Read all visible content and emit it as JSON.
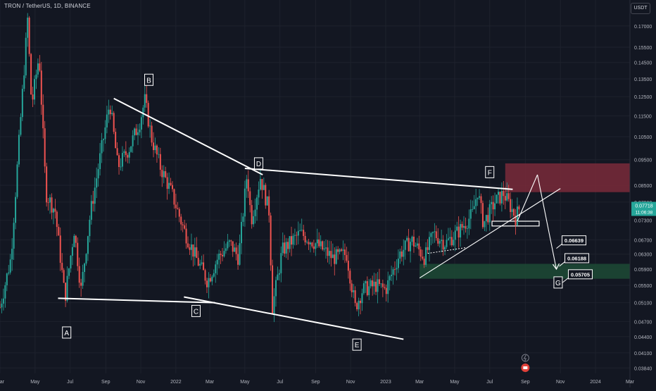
{
  "header": {
    "title": "TRON / TetherUS, 1D, BINANCE"
  },
  "currency_label": "USDT",
  "colors": {
    "background": "#131722",
    "up": "#26a69a",
    "down": "#ef5350",
    "grid": "#1e222d",
    "axis_text": "#b2b5be",
    "sell_zone": "#7a2a3a",
    "buy_zone": "#1d4a35",
    "price_badge": "#26a69a",
    "drawing": "#ffffff"
  },
  "chart_data": {
    "type": "candlestick",
    "title": "TRON / TetherUS, 1D, BINANCE",
    "y_scale": "log",
    "ylim": [
      0.0375,
      0.179
    ],
    "x_range": [
      "2021-03-01",
      "2024-03-01"
    ],
    "y_ticks": [
      "0.17000",
      "0.15500",
      "0.14500",
      "0.13500",
      "0.12500",
      "0.11500",
      "0.10500",
      "0.09500",
      "0.08500",
      "0.07900",
      "0.07300",
      "0.06700",
      "0.06300",
      "0.05900",
      "0.05500",
      "0.05100",
      "0.04700",
      "0.04400",
      "0.04100",
      "0.03840"
    ],
    "y_tick_values": [
      0.17,
      0.155,
      0.145,
      0.135,
      0.125,
      0.115,
      0.105,
      0.095,
      0.085,
      0.079,
      0.073,
      0.067,
      0.063,
      0.059,
      0.055,
      0.051,
      0.047,
      0.044,
      0.041,
      0.0384
    ],
    "x_ticks": [
      {
        "label": "Mar",
        "date": "2021-03-01"
      },
      {
        "label": "May",
        "date": "2021-05-01"
      },
      {
        "label": "Jul",
        "date": "2021-07-01"
      },
      {
        "label": "Sep",
        "date": "2021-09-01"
      },
      {
        "label": "Nov",
        "date": "2021-11-01"
      },
      {
        "label": "2022",
        "date": "2022-01-01"
      },
      {
        "label": "Mar",
        "date": "2022-03-01"
      },
      {
        "label": "May",
        "date": "2022-05-01"
      },
      {
        "label": "Jul",
        "date": "2022-07-01"
      },
      {
        "label": "Sep",
        "date": "2022-09-01"
      },
      {
        "label": "Nov",
        "date": "2022-11-01"
      },
      {
        "label": "2023",
        "date": "2023-01-01"
      },
      {
        "label": "Mar",
        "date": "2023-03-01"
      },
      {
        "label": "May",
        "date": "2023-05-01"
      },
      {
        "label": "Jul",
        "date": "2023-07-01"
      },
      {
        "label": "Sep",
        "date": "2023-09-01"
      },
      {
        "label": "Nov",
        "date": "2023-11-01"
      },
      {
        "label": "2024",
        "date": "2024-01-01"
      },
      {
        "label": "Mar",
        "date": "2024-03-01"
      }
    ],
    "price_path": [
      {
        "date": "2021-03-01",
        "price": 0.05
      },
      {
        "date": "2021-03-20",
        "price": 0.062
      },
      {
        "date": "2021-04-05",
        "price": 0.11
      },
      {
        "date": "2021-04-18",
        "price": 0.175
      },
      {
        "date": "2021-04-25",
        "price": 0.12
      },
      {
        "date": "2021-05-08",
        "price": 0.15
      },
      {
        "date": "2021-05-20",
        "price": 0.082
      },
      {
        "date": "2021-06-05",
        "price": 0.076
      },
      {
        "date": "2021-06-22",
        "price": 0.052
      },
      {
        "date": "2021-07-08",
        "price": 0.07
      },
      {
        "date": "2021-07-20",
        "price": 0.054
      },
      {
        "date": "2021-08-05",
        "price": 0.075
      },
      {
        "date": "2021-08-25",
        "price": 0.1
      },
      {
        "date": "2021-09-08",
        "price": 0.122
      },
      {
        "date": "2021-09-22",
        "price": 0.092
      },
      {
        "date": "2021-10-12",
        "price": 0.1
      },
      {
        "date": "2021-10-30",
        "price": 0.112
      },
      {
        "date": "2021-11-08",
        "price": 0.123
      },
      {
        "date": "2021-11-20",
        "price": 0.104
      },
      {
        "date": "2021-12-05",
        "price": 0.092
      },
      {
        "date": "2021-12-25",
        "price": 0.082
      },
      {
        "date": "2022-01-15",
        "price": 0.07
      },
      {
        "date": "2022-02-05",
        "price": 0.062
      },
      {
        "date": "2022-02-25",
        "price": 0.056
      },
      {
        "date": "2022-03-15",
        "price": 0.062
      },
      {
        "date": "2022-04-05",
        "price": 0.066
      },
      {
        "date": "2022-04-20",
        "price": 0.062
      },
      {
        "date": "2022-05-05",
        "price": 0.09
      },
      {
        "date": "2022-05-12",
        "price": 0.073
      },
      {
        "date": "2022-05-28",
        "price": 0.088
      },
      {
        "date": "2022-06-12",
        "price": 0.076
      },
      {
        "date": "2022-06-18",
        "price": 0.05
      },
      {
        "date": "2022-07-05",
        "price": 0.064
      },
      {
        "date": "2022-08-05",
        "price": 0.069
      },
      {
        "date": "2022-09-01",
        "price": 0.066
      },
      {
        "date": "2022-10-01",
        "price": 0.062
      },
      {
        "date": "2022-10-25",
        "price": 0.063
      },
      {
        "date": "2022-11-09",
        "price": 0.05
      },
      {
        "date": "2022-11-22",
        "price": 0.054
      },
      {
        "date": "2022-12-15",
        "price": 0.055
      },
      {
        "date": "2023-01-01",
        "price": 0.054
      },
      {
        "date": "2023-01-25",
        "price": 0.063
      },
      {
        "date": "2023-02-15",
        "price": 0.067
      },
      {
        "date": "2023-03-10",
        "price": 0.062
      },
      {
        "date": "2023-03-25",
        "price": 0.069
      },
      {
        "date": "2023-04-15",
        "price": 0.066
      },
      {
        "date": "2023-05-10",
        "price": 0.07
      },
      {
        "date": "2023-06-01",
        "price": 0.075
      },
      {
        "date": "2023-06-10",
        "price": 0.083
      },
      {
        "date": "2023-06-20",
        "price": 0.072
      },
      {
        "date": "2023-07-10",
        "price": 0.079
      },
      {
        "date": "2023-07-25",
        "price": 0.082
      },
      {
        "date": "2023-08-05",
        "price": 0.078
      },
      {
        "date": "2023-08-15",
        "price": 0.074
      },
      {
        "date": "2023-08-22",
        "price": 0.0772
      }
    ],
    "last_price": {
      "value": "0.07718",
      "countdown": "11:06:38"
    },
    "zones": [
      {
        "name": "sell-zone",
        "x_from": "2023-07-28",
        "x_to": "2024-03-01",
        "y_from": 0.0825,
        "y_to": 0.0935
      },
      {
        "name": "buy-zone",
        "x_from": "2023-03-01",
        "x_to": "2024-03-01",
        "y_from": 0.0566,
        "y_to": 0.0604
      },
      {
        "name": "small-box",
        "x_from": "2023-07-05",
        "x_to": "2023-09-25",
        "y_from": 0.0712,
        "y_to": 0.0727
      }
    ],
    "trendlines": [
      {
        "name": "upper-line-BD",
        "from": {
          "date": "2021-09-15",
          "price": 0.124
        },
        "to": {
          "date": "2022-06-01",
          "price": 0.089
        }
      },
      {
        "name": "upper-line-DF",
        "from": {
          "date": "2022-05-01",
          "price": 0.0915
        },
        "to": {
          "date": "2023-08-10",
          "price": 0.0835
        }
      },
      {
        "name": "lower-line-AC",
        "from": {
          "date": "2021-06-10",
          "price": 0.052
        },
        "to": {
          "date": "2022-03-10",
          "price": 0.051
        }
      },
      {
        "name": "lower-line-CE",
        "from": {
          "date": "2022-01-15",
          "price": 0.0523
        },
        "to": {
          "date": "2023-02-01",
          "price": 0.0435
        }
      },
      {
        "name": "rising-support",
        "from": {
          "date": "2023-03-01",
          "price": 0.0568
        },
        "to": {
          "date": "2023-11-01",
          "price": 0.0838
        }
      },
      {
        "name": "projection-1",
        "from": {
          "date": "2023-08-18",
          "price": 0.0727
        },
        "to": {
          "date": "2023-09-22",
          "price": 0.089
        }
      },
      {
        "name": "projection-2",
        "from": {
          "date": "2023-09-22",
          "price": 0.089
        },
        "to": {
          "date": "2023-10-25",
          "price": 0.059
        }
      },
      {
        "name": "dotted-line",
        "from": {
          "date": "2023-03-15",
          "price": 0.0632
        },
        "to": {
          "date": "2023-05-20",
          "price": 0.0648
        },
        "dashed": true
      }
    ],
    "wave_labels": [
      {
        "label": "A",
        "date": "2021-06-25",
        "price": 0.0448
      },
      {
        "label": "B",
        "date": "2021-11-15",
        "price": 0.1345
      },
      {
        "label": "C",
        "date": "2022-02-05",
        "price": 0.0492
      },
      {
        "label": "D",
        "date": "2022-05-25",
        "price": 0.0935
      },
      {
        "label": "E",
        "date": "2022-11-12",
        "price": 0.0425
      },
      {
        "label": "F",
        "date": "2023-07-01",
        "price": 0.09
      },
      {
        "label": "G",
        "date": "2023-10-28",
        "price": 0.0557
      }
    ],
    "price_callouts": [
      {
        "value": "0.06639",
        "date": "2023-10-25",
        "price": 0.067
      },
      {
        "value": "0.06188",
        "date": "2023-10-30",
        "price": 0.062
      },
      {
        "value": "0.05705",
        "date": "2023-11-05",
        "price": 0.0578
      }
    ]
  }
}
